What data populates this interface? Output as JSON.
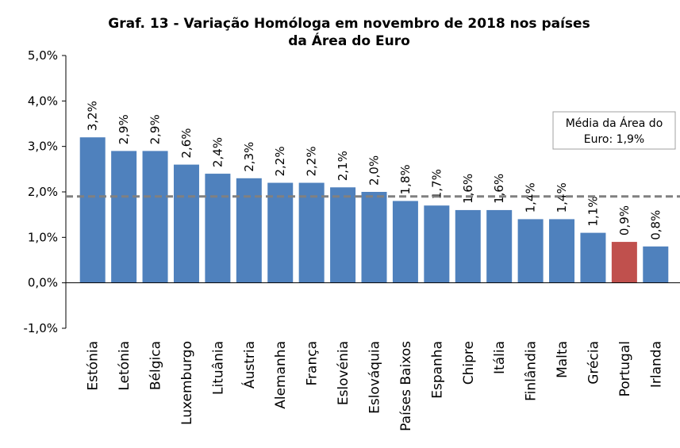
{
  "chart_data": {
    "type": "bar",
    "title": [
      "Graf. 13 - Variação Homóloga em novembro de 2018 nos países",
      "da Área do Euro"
    ],
    "categories": [
      "Estónia",
      "Letónia",
      "Bélgica",
      "Luxemburgo",
      "Lituânia",
      "Áustria",
      "Alemanha",
      "França",
      "Eslovénia",
      "Eslováquia",
      "Países Baixos",
      "Espanha",
      "Chipre",
      "Itália",
      "Finlândia",
      "Malta",
      "Grécia",
      "Portugal",
      "Irlanda"
    ],
    "values": [
      3.2,
      2.9,
      2.9,
      2.6,
      2.4,
      2.3,
      2.2,
      2.2,
      2.1,
      2.0,
      1.8,
      1.7,
      1.6,
      1.6,
      1.4,
      1.4,
      1.1,
      0.9,
      0.8
    ],
    "value_labels": [
      "3,2%",
      "2,9%",
      "2,9%",
      "2,6%",
      "2,4%",
      "2,3%",
      "2,2%",
      "2,2%",
      "2,1%",
      "2,0%",
      "1,8%",
      "1,7%",
      "1,6%",
      "1,6%",
      "1,4%",
      "1,4%",
      "1,1%",
      "0,9%",
      "0,8%"
    ],
    "colors": [
      "#4f81bd",
      "#4f81bd",
      "#4f81bd",
      "#4f81bd",
      "#4f81bd",
      "#4f81bd",
      "#4f81bd",
      "#4f81bd",
      "#4f81bd",
      "#4f81bd",
      "#4f81bd",
      "#4f81bd",
      "#4f81bd",
      "#4f81bd",
      "#4f81bd",
      "#4f81bd",
      "#4f81bd",
      "#c0504d",
      "#4f81bd"
    ],
    "ylim": [
      -1.0,
      5.0
    ],
    "yticks": [
      {
        "value": -1.0,
        "label": "-1,0%"
      },
      {
        "value": 0.0,
        "label": "0,0%"
      },
      {
        "value": 1.0,
        "label": "1,0%"
      },
      {
        "value": 2.0,
        "label": "2,0%"
      },
      {
        "value": 3.0,
        "label": "3,0%"
      },
      {
        "value": 4.0,
        "label": "4,0%"
      },
      {
        "value": 5.0,
        "label": "5,0%"
      }
    ],
    "reference_line": {
      "value": 1.9,
      "color": "#808080",
      "label": [
        "Média da Área do",
        "Euro: 1,9%"
      ]
    },
    "grid": false
  }
}
